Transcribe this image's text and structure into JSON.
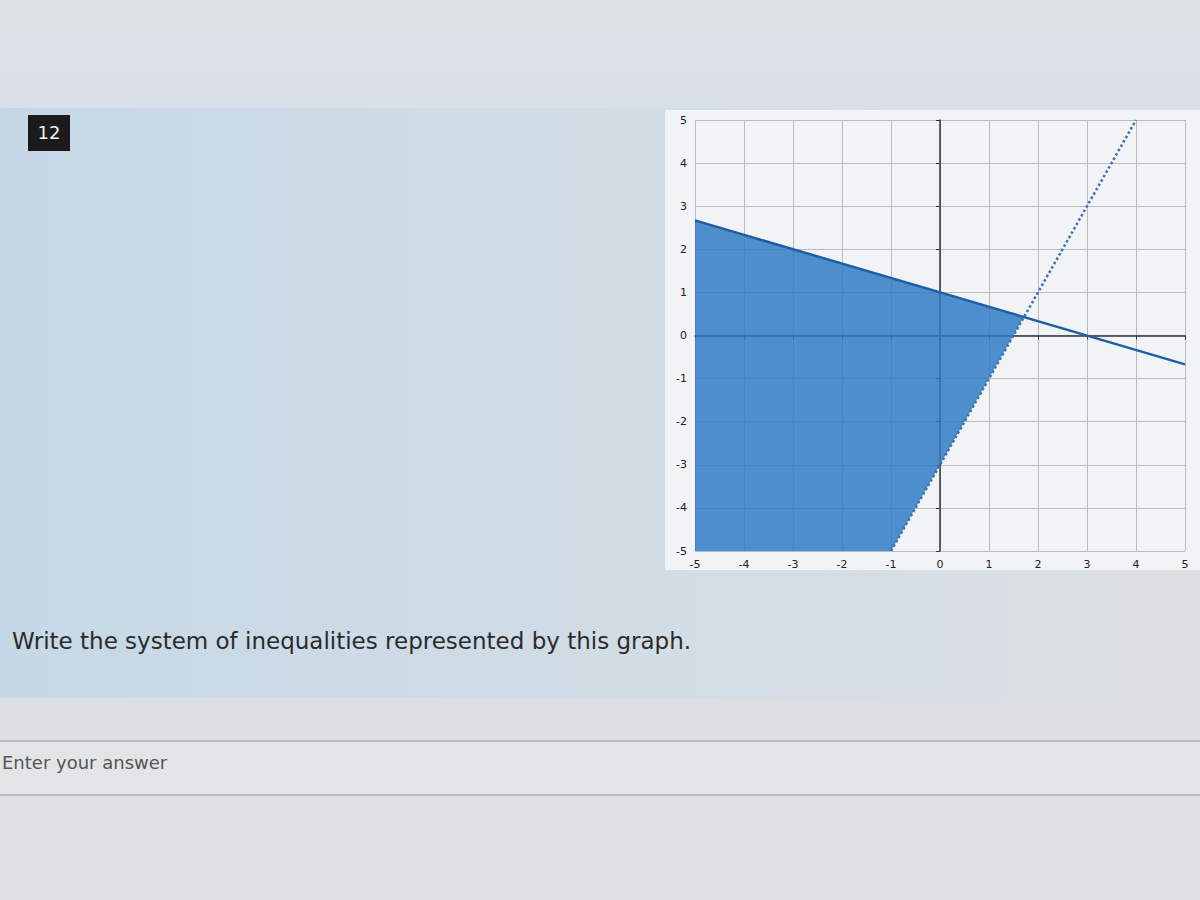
{
  "chart_data": {
    "type": "line",
    "annotations": [
      "12",
      "Write the system of inequalities represented by this graph.",
      "Enter your answer"
    ],
    "xlim": [
      -5,
      5
    ],
    "ylim": [
      -5,
      5
    ],
    "xticks": [
      -5,
      -4,
      -3,
      -2,
      -1,
      0,
      1,
      2,
      3,
      4,
      5
    ],
    "yticks": [
      -5,
      -4,
      -3,
      -2,
      -1,
      0,
      1,
      2,
      3,
      4,
      5
    ],
    "grid": true,
    "series": [
      {
        "type": "region",
        "color": "#2f7cc4",
        "x": [
          -5,
          -1,
          1.71,
          -5
        ],
        "values": [
          -5,
          -5,
          0.43,
          2.67
        ]
      },
      {
        "type": "line",
        "color": "#1f5ea6",
        "line_style": "solid",
        "marker": "none",
        "x": [
          -5,
          5
        ],
        "values": [
          2.67,
          -0.67
        ]
      },
      {
        "type": "line",
        "color": "#3b6fb6",
        "line_style": "dotted",
        "marker": "none",
        "x": [
          -1,
          4
        ],
        "values": [
          -5,
          5
        ]
      }
    ]
  }
}
